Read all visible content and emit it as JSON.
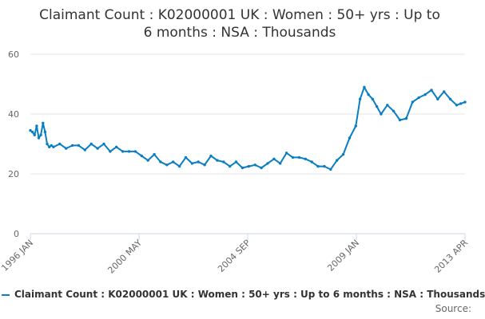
{
  "chart_data": {
    "type": "line",
    "title_line1": "Claimant Count : K02000001 UK : Women : 50+ yrs : Up to",
    "title_line2": "6 months : NSA : Thousands",
    "xlabel": "",
    "ylabel": "",
    "ylim": [
      0,
      60
    ],
    "y_ticks": [
      "0",
      "20",
      "40",
      "60"
    ],
    "x_tick_labels": [
      "1996 JAN",
      "2000 MAY",
      "2004 SEP",
      "2009 JAN",
      "2013 APR"
    ],
    "grid": true,
    "legend_position": "bottom",
    "line_color": "#0a7ec2",
    "series": [
      {
        "name": "Claimant Count : K02000001 UK : Women : 50+ yrs : Up to 6 months : NSA : Thousands",
        "x": [
          "1996-01",
          "1996-02",
          "1996-03",
          "1996-04",
          "1996-05",
          "1996-06",
          "1996-07",
          "1996-08",
          "1996-09",
          "1996-10",
          "1996-11",
          "1996-12",
          "1997-03",
          "1997-06",
          "1997-09",
          "1997-12",
          "1998-03",
          "1998-06",
          "1998-09",
          "1998-12",
          "1999-03",
          "1999-06",
          "1999-09",
          "1999-12",
          "2000-03",
          "2000-06",
          "2000-09",
          "2000-12",
          "2001-03",
          "2001-06",
          "2001-09",
          "2001-12",
          "2002-03",
          "2002-06",
          "2002-09",
          "2002-12",
          "2003-03",
          "2003-06",
          "2003-09",
          "2003-12",
          "2004-03",
          "2004-06",
          "2004-09",
          "2004-12",
          "2005-03",
          "2005-06",
          "2005-09",
          "2005-12",
          "2006-03",
          "2006-06",
          "2006-09",
          "2006-12",
          "2007-03",
          "2007-06",
          "2007-09",
          "2007-12",
          "2008-03",
          "2008-06",
          "2008-09",
          "2008-12",
          "2009-02",
          "2009-04",
          "2009-06",
          "2009-08",
          "2009-10",
          "2009-12",
          "2010-03",
          "2010-06",
          "2010-09",
          "2010-12",
          "2011-03",
          "2011-06",
          "2011-09",
          "2011-12",
          "2012-03",
          "2012-06",
          "2012-09",
          "2012-12",
          "2013-02",
          "2013-04"
        ],
        "values": [
          34.5,
          34,
          33,
          36,
          32,
          33,
          37,
          34,
          30,
          29,
          29.5,
          29,
          30,
          28.5,
          29.5,
          29.5,
          28,
          30,
          28.5,
          30,
          27.5,
          29,
          27.5,
          27.5,
          27.5,
          26,
          24.5,
          26.5,
          24,
          23,
          24,
          22.5,
          25.5,
          23.5,
          24,
          23,
          26,
          24.5,
          24,
          22.5,
          24,
          22,
          22.5,
          23,
          22,
          23.5,
          25,
          23.5,
          27,
          25.5,
          25.5,
          25,
          24,
          22.5,
          22.5,
          21.5,
          24.5,
          26.5,
          32,
          36,
          45,
          49,
          46.5,
          45,
          42.5,
          40,
          43,
          41,
          38,
          38.5,
          44,
          45.5,
          46.5,
          48,
          45,
          47.5,
          45,
          43,
          43.5,
          44
        ]
      }
    ]
  },
  "legend": {
    "label": "Claimant Count : K02000001 UK : Women : 50+ yrs : Up to 6 months : NSA : Thousands"
  },
  "source_label": "Source:"
}
